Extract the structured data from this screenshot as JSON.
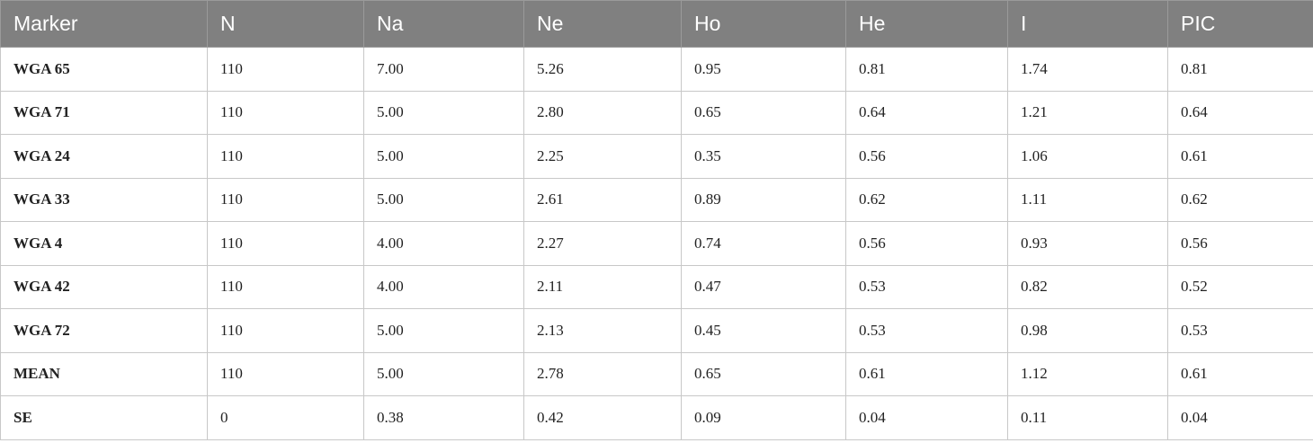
{
  "table": {
    "header": [
      "Marker",
      "N",
      "Na",
      "Ne",
      "Ho",
      "He",
      "I",
      "PIC"
    ],
    "rows": [
      [
        "WGA 65",
        "110",
        "7.00",
        "5.26",
        "0.95",
        "0.81",
        "1.74",
        "0.81"
      ],
      [
        "WGA 71",
        "110",
        "5.00",
        "2.80",
        "0.65",
        "0.64",
        "1.21",
        "0.64"
      ],
      [
        "WGA 24",
        "110",
        "5.00",
        "2.25",
        "0.35",
        "0.56",
        "1.06",
        "0.61"
      ],
      [
        "WGA 33",
        "110",
        "5.00",
        "2.61",
        "0.89",
        "0.62",
        "1.11",
        "0.62"
      ],
      [
        "WGA 4",
        "110",
        "4.00",
        "2.27",
        "0.74",
        "0.56",
        "0.93",
        "0.56"
      ],
      [
        "WGA 42",
        "110",
        "4.00",
        "2.11",
        "0.47",
        "0.53",
        "0.82",
        "0.52"
      ],
      [
        "WGA 72",
        "110",
        "5.00",
        "2.13",
        "0.45",
        "0.53",
        "0.98",
        "0.53"
      ],
      [
        "MEAN",
        "110",
        "5.00",
        "2.78",
        "0.65",
        "0.61",
        "1.12",
        "0.61"
      ],
      [
        "SE",
        "0",
        "0.38",
        "0.42",
        "0.09",
        "0.04",
        "0.11",
        "0.04"
      ]
    ]
  }
}
